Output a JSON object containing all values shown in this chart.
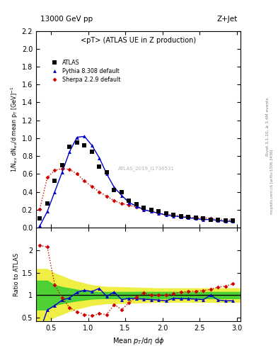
{
  "title_top": "13000 GeV pp",
  "title_right": "Z+Jet",
  "plot_title": "<pT> (ATLAS UE in Z production)",
  "xlabel": "Mean $p_T$/d$\\eta$ d$\\phi$",
  "ylabel_main": "1/N$_{ev}$ dN$_{ev}$/d mean p$_T$ [GeV]$^{-1}$",
  "ylabel_ratio": "Ratio to ATLAS",
  "watermark": "ATLAS_2019_I1736531",
  "ylim_main": [
    0,
    2.2
  ],
  "ylim_ratio": [
    0.42,
    2.5
  ],
  "xlim": [
    0.3,
    3.05
  ],
  "atlas_x": [
    0.35,
    0.45,
    0.55,
    0.65,
    0.75,
    0.85,
    0.95,
    1.05,
    1.15,
    1.25,
    1.35,
    1.45,
    1.55,
    1.65,
    1.75,
    1.85,
    1.95,
    2.05,
    2.15,
    2.25,
    2.35,
    2.45,
    2.55,
    2.65,
    2.75,
    2.85,
    2.95
  ],
  "atlas_y": [
    0.1,
    0.27,
    0.52,
    0.7,
    0.9,
    0.95,
    0.92,
    0.85,
    0.68,
    0.62,
    0.42,
    0.4,
    0.3,
    0.26,
    0.22,
    0.2,
    0.18,
    0.16,
    0.14,
    0.13,
    0.12,
    0.11,
    0.1,
    0.09,
    0.09,
    0.08,
    0.08
  ],
  "pythia_x": [
    0.35,
    0.45,
    0.55,
    0.65,
    0.75,
    0.85,
    0.95,
    1.05,
    1.15,
    1.25,
    1.35,
    1.45,
    1.55,
    1.65,
    1.75,
    1.85,
    1.95,
    2.05,
    2.15,
    2.25,
    2.35,
    2.45,
    2.55,
    2.65,
    2.75,
    2.85,
    2.95
  ],
  "pythia_y": [
    0.02,
    0.18,
    0.4,
    0.62,
    0.85,
    1.01,
    1.02,
    0.92,
    0.78,
    0.6,
    0.45,
    0.36,
    0.28,
    0.24,
    0.2,
    0.18,
    0.16,
    0.14,
    0.13,
    0.12,
    0.11,
    0.1,
    0.09,
    0.09,
    0.08,
    0.07,
    0.07
  ],
  "sherpa_x": [
    0.35,
    0.45,
    0.55,
    0.65,
    0.75,
    0.85,
    0.95,
    1.05,
    1.15,
    1.25,
    1.35,
    1.45,
    1.55,
    1.65,
    1.75,
    1.85,
    1.95,
    2.05,
    2.15,
    2.25,
    2.35,
    2.45,
    2.55,
    2.65,
    2.75,
    2.85,
    2.95
  ],
  "sherpa_y": [
    0.21,
    0.56,
    0.64,
    0.66,
    0.65,
    0.6,
    0.52,
    0.46,
    0.4,
    0.35,
    0.3,
    0.27,
    0.25,
    0.23,
    0.2,
    0.18,
    0.16,
    0.15,
    0.14,
    0.13,
    0.12,
    0.11,
    0.11,
    0.1,
    0.09,
    0.09,
    0.08
  ],
  "pythia_ratio_x": [
    0.35,
    0.45,
    0.55,
    0.65,
    0.75,
    0.85,
    0.95,
    1.05,
    1.15,
    1.25,
    1.35,
    1.45,
    1.55,
    1.65,
    1.75,
    1.85,
    1.95,
    2.05,
    2.15,
    2.25,
    2.35,
    2.45,
    2.55,
    2.65,
    2.75,
    2.85,
    2.95
  ],
  "pythia_ratio_y": [
    0.2,
    0.67,
    0.77,
    0.89,
    0.94,
    1.06,
    1.11,
    1.08,
    1.15,
    0.97,
    1.07,
    0.9,
    0.93,
    0.92,
    0.91,
    0.9,
    0.89,
    0.875,
    0.93,
    0.92,
    0.92,
    0.91,
    0.9,
    1.0,
    0.89,
    0.875,
    0.875
  ],
  "sherpa_ratio_x": [
    0.35,
    0.45,
    0.55,
    0.65,
    0.75,
    0.85,
    0.95,
    1.05,
    1.15,
    1.25,
    1.35,
    1.45,
    1.55,
    1.65,
    1.75,
    1.85,
    1.95,
    2.05,
    2.15,
    2.25,
    2.35,
    2.45,
    2.55,
    2.65,
    2.75,
    2.85,
    2.95
  ],
  "sherpa_ratio_y": [
    2.1,
    2.07,
    1.23,
    0.94,
    0.72,
    0.63,
    0.57,
    0.54,
    0.59,
    0.57,
    0.79,
    0.68,
    0.83,
    0.96,
    1.05,
    1.0,
    1.0,
    1.0,
    1.03,
    1.07,
    1.08,
    1.09,
    1.1,
    1.13,
    1.18,
    1.2,
    1.25
  ],
  "band_x": [
    0.3,
    0.45,
    0.55,
    0.65,
    0.75,
    0.85,
    0.95,
    1.05,
    1.15,
    1.25,
    1.35,
    1.55,
    1.75,
    1.95,
    2.15,
    2.55,
    2.95,
    3.05
  ],
  "band_green_lo": [
    0.68,
    0.68,
    0.78,
    0.82,
    0.85,
    0.88,
    0.9,
    0.92,
    0.93,
    0.93,
    0.93,
    0.93,
    0.93,
    0.93,
    0.93,
    0.93,
    0.93,
    0.93
  ],
  "band_green_hi": [
    1.32,
    1.32,
    1.22,
    1.18,
    1.15,
    1.12,
    1.1,
    1.08,
    1.07,
    1.07,
    1.07,
    1.07,
    1.07,
    1.07,
    1.07,
    1.07,
    1.07,
    1.07
  ],
  "band_yellow_lo": [
    0.42,
    0.42,
    0.52,
    0.58,
    0.65,
    0.7,
    0.74,
    0.78,
    0.8,
    0.82,
    0.82,
    0.83,
    0.84,
    0.85,
    0.85,
    0.85,
    0.85,
    0.85
  ],
  "band_yellow_hi": [
    1.58,
    1.58,
    1.48,
    1.42,
    1.35,
    1.3,
    1.26,
    1.22,
    1.2,
    1.18,
    1.18,
    1.17,
    1.16,
    1.15,
    1.15,
    1.15,
    1.15,
    1.15
  ],
  "color_atlas": "#000000",
  "color_pythia": "#0000cc",
  "color_sherpa": "#cc0000",
  "color_green_band": "#33cc33",
  "color_yellow_band": "#eeee44",
  "right_label": "Rivet 3.1.10, ≥ 3.4M events",
  "side_label": "mcplots.cern.ch [arXiv:1306.3436]"
}
